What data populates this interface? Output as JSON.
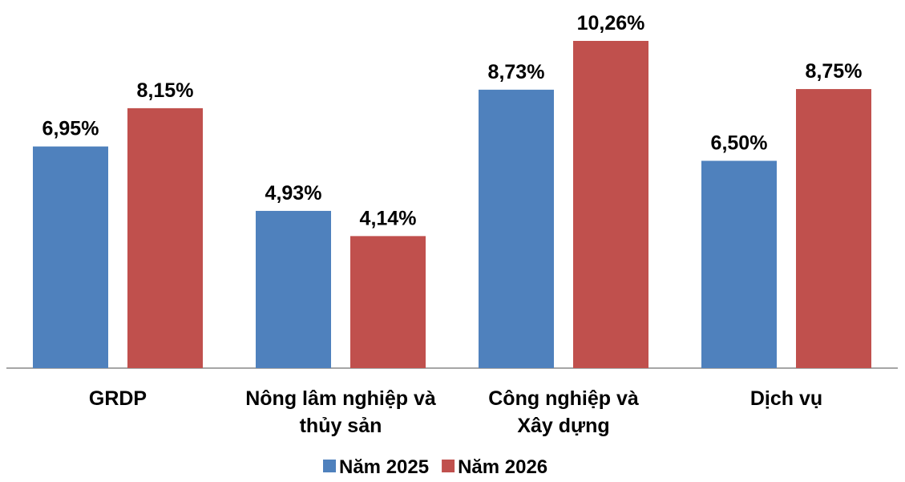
{
  "chart_data": {
    "type": "bar",
    "categories": [
      "GRDP",
      "Nông lâm nghiệp và\nthủy sản",
      "Công nghiệp và\nXây dựng",
      "Dịch vụ"
    ],
    "series": [
      {
        "name": "Năm 2025",
        "color": "#4f81bd",
        "values": [
          6.95,
          4.93,
          8.73,
          6.5
        ],
        "value_labels": [
          "6,95%",
          "4,93%",
          "8,73%",
          "6,50%"
        ]
      },
      {
        "name": "Năm 2026",
        "color": "#c0504d",
        "values": [
          8.15,
          4.14,
          10.26,
          8.75
        ],
        "value_labels": [
          "8,15%",
          "4,14%",
          "10,26%",
          "8,75%"
        ]
      }
    ],
    "legend": "bottom"
  }
}
